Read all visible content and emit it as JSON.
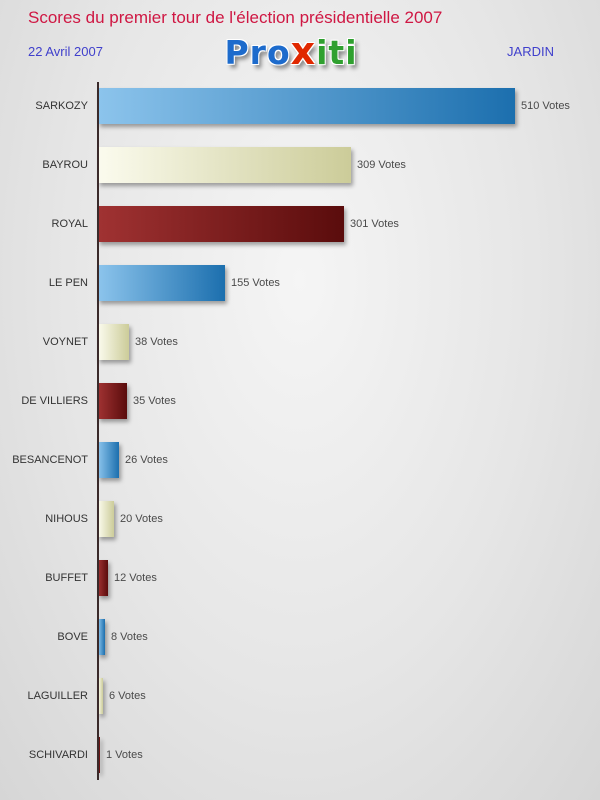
{
  "header": {
    "title": "Scores du premier tour de l'élection présidentielle 2007",
    "date": "22 Avril 2007",
    "location": "JARDIN",
    "title_color": "#cf1743",
    "subtext_color": "#4040cc",
    "logo": {
      "part1": "Pro",
      "part2": "x",
      "part3": "iti",
      "part1_color": "#1d6bcc",
      "part2_color": "#e02800",
      "part3_color": "#2fa02f"
    }
  },
  "chart_data": {
    "type": "bar",
    "orientation": "horizontal",
    "title": "Scores du premier tour de l'élection présidentielle 2007",
    "xlabel": "",
    "ylabel": "",
    "categories": [
      "SARKOZY",
      "BAYROU",
      "ROYAL",
      "LE PEN",
      "VOYNET",
      "DE VILLIERS",
      "BESANCENOT",
      "NIHOUS",
      "BUFFET",
      "BOVE",
      "LAGUILLER",
      "SCHIVARDI"
    ],
    "values": [
      510,
      309,
      301,
      155,
      38,
      35,
      26,
      20,
      12,
      8,
      6,
      1
    ],
    "value_suffix": " Votes",
    "xlim": [
      0,
      510
    ],
    "grid": false,
    "legend": false,
    "bar_colors_cycle": [
      {
        "light": "#8cc4ec",
        "dark": "#1c6fae"
      },
      {
        "light": "#fbfbee",
        "dark": "#cccc99"
      },
      {
        "light": "#a03232",
        "dark": "#5a0c0c"
      }
    ],
    "axis_color": "#3a2a2a",
    "label_color": "#333333",
    "value_color": "#4a4a4a"
  }
}
